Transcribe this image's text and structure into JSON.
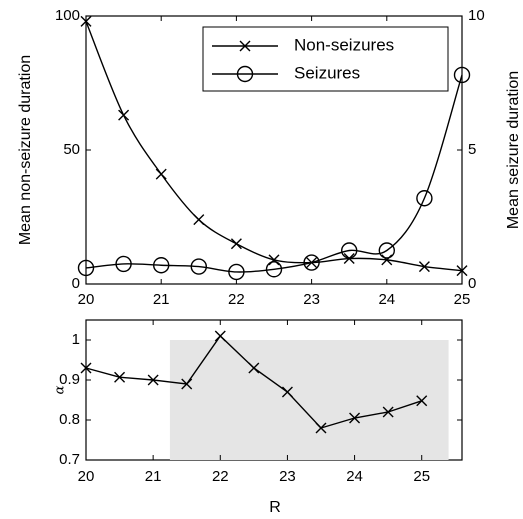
{
  "chart_data": [
    {
      "type": "line",
      "x": [
        20,
        20.5,
        21,
        21.5,
        22,
        22.5,
        23,
        23.5,
        24,
        24.5,
        25
      ],
      "xlim": [
        20,
        25
      ],
      "xticks": [
        "20",
        "21",
        "22",
        "23",
        "24",
        "25"
      ],
      "ylabel": "Mean non-seizure duration",
      "ylim": [
        0,
        100
      ],
      "yticks": [
        "0",
        "50",
        "100"
      ],
      "y2label": "Mean seizure duration",
      "y2lim": [
        0,
        10
      ],
      "y2ticks": [
        "0",
        "5",
        "10"
      ],
      "legend_position": "top-right",
      "series": [
        {
          "name": "Non-seizures",
          "axis": "left",
          "marker": "x",
          "values": [
            98,
            63,
            41,
            24,
            15,
            9,
            8,
            9.5,
            9,
            6.5,
            5
          ]
        },
        {
          "name": "Seizures",
          "axis": "right",
          "marker": "circle",
          "values": [
            0.6,
            0.75,
            0.7,
            0.65,
            0.45,
            0.55,
            0.8,
            1.25,
            1.25,
            3.2,
            7.8
          ]
        }
      ]
    },
    {
      "type": "line",
      "x": [
        20,
        20.5,
        21,
        21.5,
        22,
        22.5,
        23,
        23.5,
        24,
        24.5,
        25
      ],
      "xlim": [
        20,
        25.6
      ],
      "xticks": [
        "20",
        "21",
        "22",
        "23",
        "24",
        "25"
      ],
      "xlabel": "R",
      "ylabel": "α",
      "ylim": [
        0.7,
        1.05
      ],
      "yticks": [
        "0.7",
        "0.8",
        "0.9",
        "1"
      ],
      "shaded_region": {
        "x": [
          21.25,
          25.4
        ],
        "y": [
          0.7,
          1.0
        ],
        "color": "#e5e5e5"
      },
      "series": [
        {
          "marker": "x",
          "values": [
            0.93,
            0.907,
            0.9,
            0.89,
            1.01,
            0.93,
            0.87,
            0.78,
            0.805,
            0.82,
            0.848
          ]
        }
      ]
    }
  ]
}
